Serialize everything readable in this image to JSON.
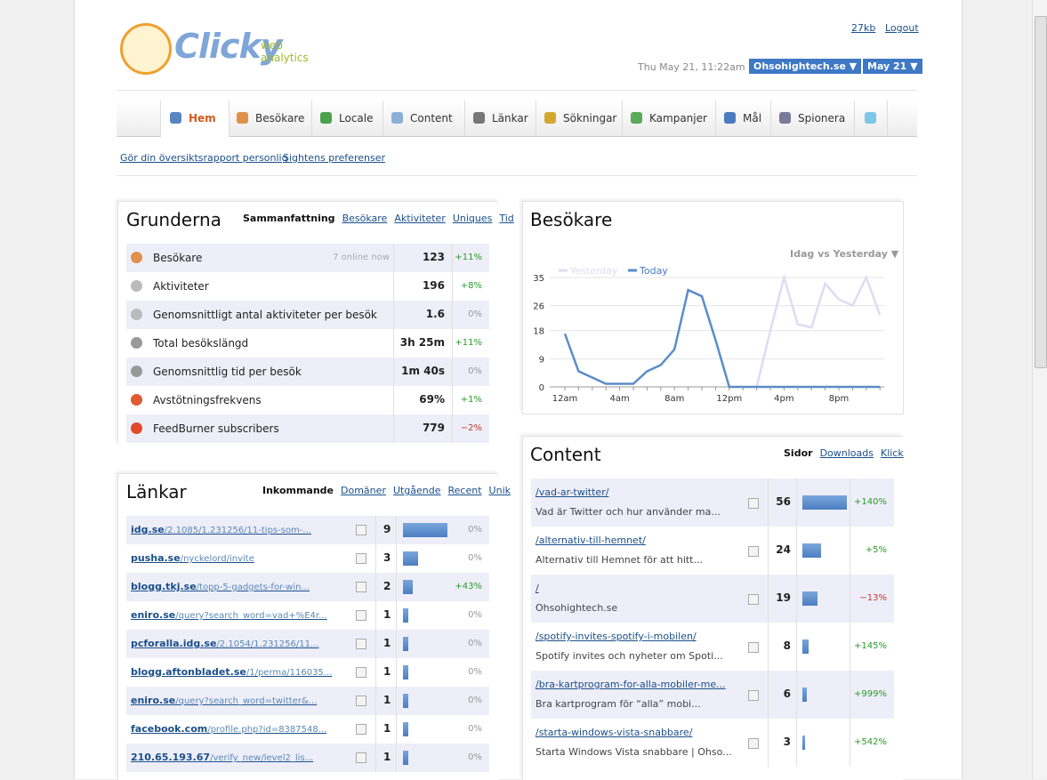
{
  "header": {
    "logo": "Clicky",
    "logo_sub1": "web",
    "logo_sub2": "analytics",
    "links": [
      "27kb",
      "Logout"
    ],
    "datetime": "Thu May 21, 11:22am",
    "site": "Ohsohightech.se ▼",
    "date": "May 21 ▼"
  },
  "nav": [
    "Hem",
    "Besökare",
    "Locale",
    "Content",
    "Länkar",
    "Sökningar",
    "Kampanjer",
    "Mål",
    "Spionera"
  ],
  "sublinks": [
    "Gör din översiktsrapport personlig",
    "Sightens preferenser"
  ],
  "grunderna": {
    "title": "Grunderna",
    "tabs": [
      "Sammanfattning",
      "Besökare",
      "Aktiviteter",
      "Uniques",
      "Tid"
    ],
    "rows": [
      {
        "label": "Besökare",
        "note": "7 online now",
        "value": "123",
        "change": "+11%"
      },
      {
        "label": "Aktiviteter",
        "value": "196",
        "change": "+8%"
      },
      {
        "label": "Genomsnittligt antal aktiviteter per besök",
        "value": "1.6",
        "change": "0%"
      },
      {
        "label": "Total besökslängd",
        "value": "3h 25m",
        "change": "+11%"
      },
      {
        "label": "Genomsnittlig tid per besök",
        "value": "1m 40s",
        "change": "0%"
      },
      {
        "label": "Avstötningsfrekvens",
        "value": "69%",
        "change": "+1%"
      },
      {
        "label": "FeedBurner subscribers",
        "value": "779",
        "change": "−2%"
      }
    ]
  },
  "lankar": {
    "title": "Länkar",
    "tabs": [
      "Inkommande",
      "Domäner",
      "Utgående",
      "Recent",
      "Unik"
    ],
    "rows": [
      {
        "domain": "idg.se",
        "path": "/2.1085/1.231256/11-tips-som-...",
        "count": 9,
        "change": "0%"
      },
      {
        "domain": "pusha.se",
        "path": "/nyckelord/invite",
        "count": 3,
        "change": "0%"
      },
      {
        "domain": "blogg.tkj.se",
        "path": "/topp-5-gadgets-for-win...",
        "count": 2,
        "change": "+43%"
      },
      {
        "domain": "eniro.se",
        "path": "/query?search_word=vad+%E4r...",
        "count": 1,
        "change": "0%"
      },
      {
        "domain": "pcforalla.idg.se",
        "path": "/2.1054/1.231256/11...",
        "count": 1,
        "change": "0%"
      },
      {
        "domain": "blogg.aftonbladet.se",
        "path": "/1/perma/116035...",
        "count": 1,
        "change": "0%"
      },
      {
        "domain": "eniro.se",
        "path": "/query?search_word=twitter&...",
        "count": 1,
        "change": "0%"
      },
      {
        "domain": "facebook.com",
        "path": "/profile.php?id=8387548...",
        "count": 1,
        "change": "0%"
      },
      {
        "domain": "210.65.193.67",
        "path": "/verify_new/level2_lis...",
        "count": 1,
        "change": "0%"
      }
    ]
  },
  "chart_data": {
    "type": "line",
    "title": "Besökare",
    "dropdown": "Idag vs Yesterday ▼",
    "categories": [
      "12am",
      null,
      null,
      null,
      "4am",
      null,
      null,
      null,
      "8am",
      null,
      null,
      null,
      "12pm",
      null,
      null,
      null,
      "4pm",
      null,
      null,
      null,
      "8pm",
      null,
      null,
      null
    ],
    "series": [
      {
        "name": "Yesterday",
        "color": "#dcdcf2",
        "values": [
          null,
          null,
          null,
          null,
          null,
          null,
          null,
          null,
          null,
          null,
          null,
          null,
          null,
          null,
          0,
          18,
          35,
          20,
          19,
          33,
          28,
          26,
          35,
          23
        ]
      },
      {
        "name": "Today",
        "color": "#5b8cc8",
        "values": [
          17,
          5,
          3,
          1,
          1,
          1,
          5,
          7,
          12,
          31,
          29,
          15,
          0,
          0,
          0,
          0,
          0,
          0,
          0,
          0,
          0,
          0,
          0,
          0
        ]
      }
    ],
    "ylim": [
      0,
      35
    ],
    "yticks": [
      0,
      9,
      18,
      26,
      35
    ],
    "grid": true
  },
  "content": {
    "title": "Content",
    "tabs": [
      "Sidor",
      "Downloads",
      "Klick"
    ],
    "rows": [
      {
        "url": "/vad-ar-twitter/",
        "desc": "Vad är Twitter och hur använder ma...",
        "count": 56,
        "change": "+140%"
      },
      {
        "url": "/alternativ-till-hemnet/",
        "desc": "Alternativ till Hemnet för att hitt...",
        "count": 24,
        "change": "+5%"
      },
      {
        "url": "/",
        "desc": "Ohsohightech.se",
        "count": 19,
        "change": "−13%"
      },
      {
        "url": "/spotify-invites-spotify-i-mobilen/",
        "desc": "Spotify invites och nyheter om Spoti...",
        "count": 8,
        "change": "+145%"
      },
      {
        "url": "/bra-kartprogram-for-alla-mobiler-me...",
        "desc": "Bra kartprogram för “alla” mobi...",
        "count": 6,
        "change": "+999%"
      },
      {
        "url": "/starta-windows-vista-snabbare/",
        "desc": "Starta Windows Vista snabbare | Ohso...",
        "count": 3,
        "change": "+542%"
      }
    ]
  }
}
